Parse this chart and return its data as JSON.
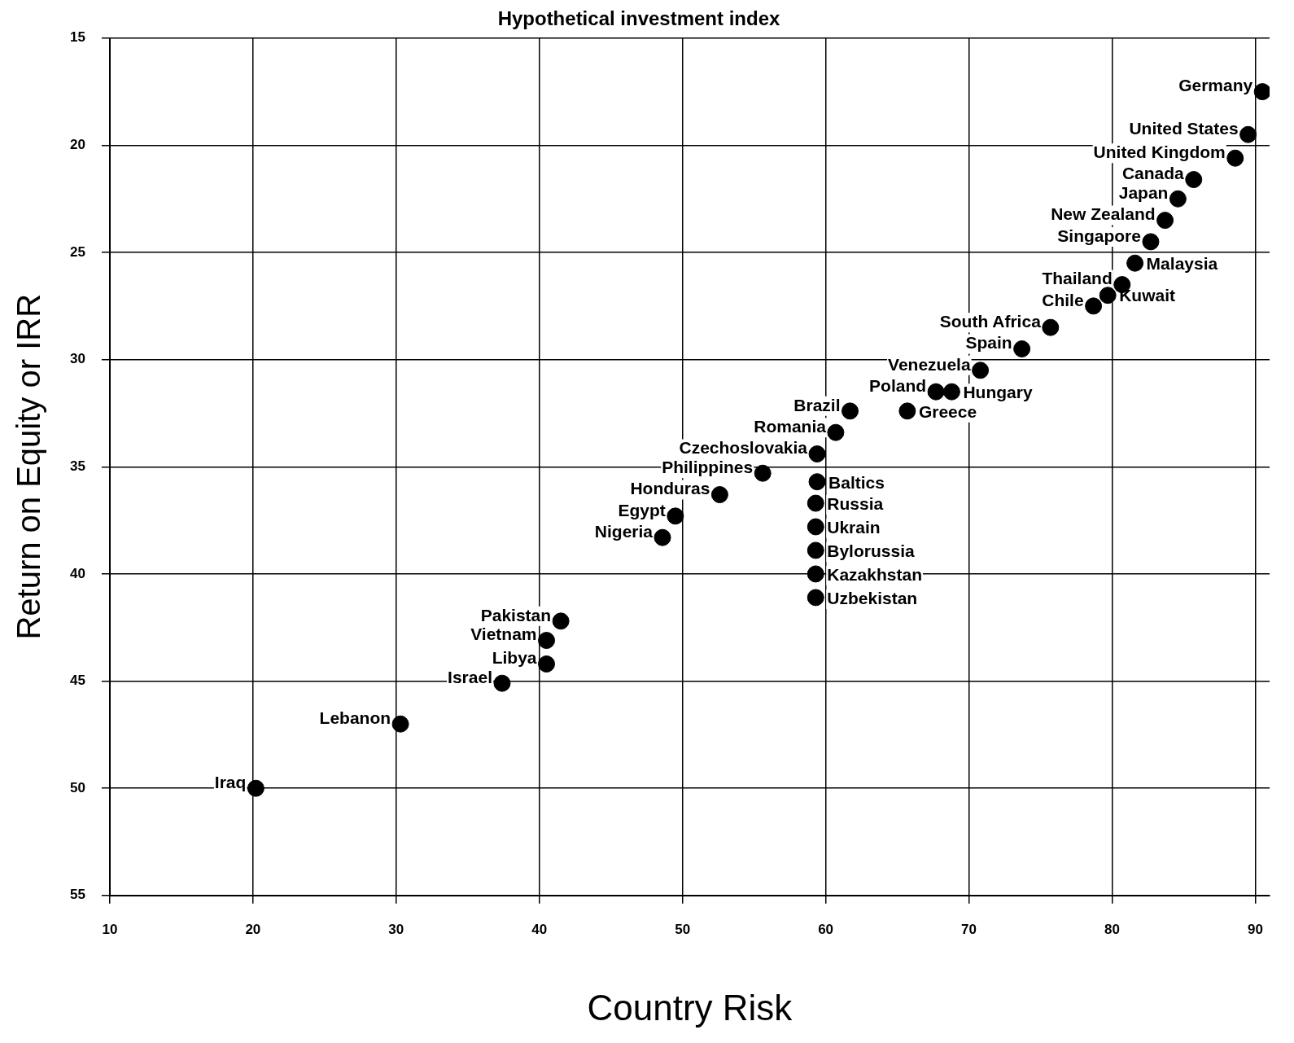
{
  "chart_data": {
    "type": "scatter",
    "title": "Hypothetical investment index",
    "xlabel": "Country Risk",
    "ylabel": "Return on Equity or IRR",
    "xlim": [
      10,
      91
    ],
    "xticks": [
      10,
      20,
      30,
      40,
      50,
      60,
      70,
      80,
      90
    ],
    "ylim": [
      55,
      15
    ],
    "yticks": [
      15,
      20,
      25,
      30,
      35,
      40,
      45,
      50,
      55
    ],
    "grid": true,
    "legend": false,
    "marker": "circle",
    "series": [
      {
        "name": "Germany",
        "color": "#000000",
        "x": [
          90.5
        ],
        "values": [
          17.5
        ]
      },
      {
        "name": "United States",
        "color": "#000000",
        "x": [
          89.5
        ],
        "values": [
          19.5
        ]
      },
      {
        "name": "United Kingdom",
        "color": "#000000",
        "x": [
          88.6
        ],
        "values": [
          20.6
        ]
      },
      {
        "name": "Canada",
        "color": "#000000",
        "x": [
          85.7
        ],
        "values": [
          21.6
        ]
      },
      {
        "name": "Japan",
        "color": "#000000",
        "x": [
          84.6
        ],
        "values": [
          22.5
        ]
      },
      {
        "name": "New Zealand",
        "color": "#000000",
        "x": [
          83.7
        ],
        "values": [
          23.5
        ]
      },
      {
        "name": "Singapore",
        "color": "#000000",
        "x": [
          82.7
        ],
        "values": [
          24.5
        ]
      },
      {
        "name": "Malaysia",
        "color": "#000000",
        "x": [
          81.6
        ],
        "values": [
          25.5
        ]
      },
      {
        "name": "Thailand",
        "color": "#000000",
        "x": [
          80.7
        ],
        "values": [
          26.5
        ]
      },
      {
        "name": "Kuwait",
        "color": "#000000",
        "x": [
          79.7
        ],
        "values": [
          27.0
        ]
      },
      {
        "name": "Chile",
        "color": "#000000",
        "x": [
          78.7
        ],
        "values": [
          27.5
        ]
      },
      {
        "name": "South Africa",
        "color": "#000000",
        "x": [
          75.7
        ],
        "values": [
          28.5
        ]
      },
      {
        "name": "Spain",
        "color": "#000000",
        "x": [
          73.7
        ],
        "values": [
          29.5
        ]
      },
      {
        "name": "Venezuela",
        "color": "#000000",
        "x": [
          70.8
        ],
        "values": [
          30.5
        ]
      },
      {
        "name": "Poland",
        "color": "#000000",
        "x": [
          67.7
        ],
        "values": [
          31.5
        ]
      },
      {
        "name": "Hungary",
        "color": "#000000",
        "x": [
          68.8
        ],
        "values": [
          31.5
        ]
      },
      {
        "name": "Greece",
        "color": "#000000",
        "x": [
          65.7
        ],
        "values": [
          32.4
        ]
      },
      {
        "name": "Brazil",
        "color": "#000000",
        "x": [
          61.7
        ],
        "values": [
          32.4
        ]
      },
      {
        "name": "Romania",
        "color": "#000000",
        "x": [
          60.7
        ],
        "values": [
          33.4
        ]
      },
      {
        "name": "Czechoslovakia",
        "color": "#000000",
        "x": [
          59.4
        ],
        "values": [
          34.4
        ]
      },
      {
        "name": "Philippines",
        "color": "#000000",
        "x": [
          55.6
        ],
        "values": [
          35.3
        ]
      },
      {
        "name": "Baltics",
        "color": "#000000",
        "x": [
          59.4
        ],
        "values": [
          35.7
        ]
      },
      {
        "name": "Russia",
        "color": "#000000",
        "x": [
          59.3
        ],
        "values": [
          36.7
        ]
      },
      {
        "name": "Ukrain",
        "color": "#000000",
        "x": [
          59.3
        ],
        "values": [
          37.8
        ]
      },
      {
        "name": "Bylorussia",
        "color": "#000000",
        "x": [
          59.3
        ],
        "values": [
          38.9
        ]
      },
      {
        "name": "Kazakhstan",
        "color": "#000000",
        "x": [
          59.3
        ],
        "values": [
          40.0
        ]
      },
      {
        "name": "Uzbekistan",
        "color": "#000000",
        "x": [
          59.3
        ],
        "values": [
          41.1
        ]
      },
      {
        "name": "Honduras",
        "color": "#000000",
        "x": [
          52.6
        ],
        "values": [
          36.3
        ]
      },
      {
        "name": "Egypt",
        "color": "#000000",
        "x": [
          49.5
        ],
        "values": [
          37.3
        ]
      },
      {
        "name": "Nigeria",
        "color": "#000000",
        "x": [
          48.6
        ],
        "values": [
          38.3
        ]
      },
      {
        "name": "Pakistan",
        "color": "#000000",
        "x": [
          41.5
        ],
        "values": [
          42.2
        ]
      },
      {
        "name": "Vietnam",
        "color": "#000000",
        "x": [
          40.5
        ],
        "values": [
          43.1
        ]
      },
      {
        "name": "Libya",
        "color": "#000000",
        "x": [
          40.5
        ],
        "values": [
          44.2
        ]
      },
      {
        "name": "Israel",
        "color": "#000000",
        "x": [
          37.4
        ],
        "values": [
          45.1
        ]
      },
      {
        "name": "Lebanon",
        "color": "#000000",
        "x": [
          30.3
        ],
        "values": [
          47.0
        ]
      },
      {
        "name": "Iraq",
        "color": "#000000",
        "x": [
          20.2
        ],
        "values": [
          50.0
        ]
      }
    ]
  }
}
